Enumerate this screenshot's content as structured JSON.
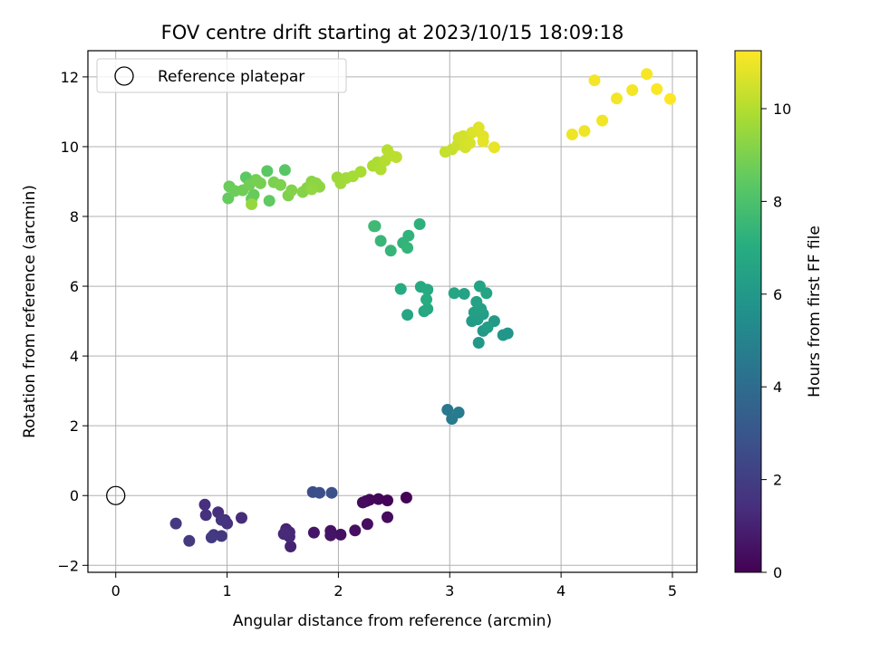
{
  "chart_data": {
    "type": "scatter",
    "title": "FOV centre drift starting at 2023/10/15 18:09:18",
    "xlabel": "Angular distance from reference (arcmin)",
    "ylabel": "Rotation from reference (arcmin)",
    "xlim": [
      -0.25,
      5.22
    ],
    "ylim": [
      -2.2,
      12.75
    ],
    "xticks": [
      0,
      1,
      2,
      3,
      4,
      5
    ],
    "yticks": [
      -2,
      0,
      2,
      4,
      6,
      8,
      10,
      12
    ],
    "grid": true,
    "legend": {
      "placement": "top-left",
      "entries": [
        "Reference platepar"
      ]
    },
    "reference_point": {
      "name": "Reference platepar",
      "x": 0,
      "y": 0
    },
    "colorbar": {
      "label": "Hours from first FF file",
      "colormap": "viridis",
      "range": [
        0,
        11.25
      ],
      "ticks": [
        0,
        2,
        4,
        6,
        8,
        10
      ]
    },
    "points": [
      {
        "x": 2.61,
        "y": -0.06,
        "c": 0.05
      },
      {
        "x": 2.44,
        "y": -0.14,
        "c": 0.1
      },
      {
        "x": 2.36,
        "y": -0.1,
        "c": 0.15
      },
      {
        "x": 2.28,
        "y": -0.12,
        "c": 0.2
      },
      {
        "x": 2.25,
        "y": -0.16,
        "c": 0.25
      },
      {
        "x": 2.22,
        "y": -0.2,
        "c": 0.3
      },
      {
        "x": 2.44,
        "y": -0.62,
        "c": 0.35
      },
      {
        "x": 2.26,
        "y": -0.82,
        "c": 0.4
      },
      {
        "x": 2.15,
        "y": -1.0,
        "c": 0.45
      },
      {
        "x": 2.02,
        "y": -1.12,
        "c": 0.5
      },
      {
        "x": 1.93,
        "y": -1.01,
        "c": 0.55
      },
      {
        "x": 1.93,
        "y": -1.14,
        "c": 0.6
      },
      {
        "x": 1.78,
        "y": -1.06,
        "c": 0.65
      },
      {
        "x": 1.57,
        "y": -1.46,
        "c": 1.0
      },
      {
        "x": 1.53,
        "y": -0.96,
        "c": 1.05
      },
      {
        "x": 1.51,
        "y": -1.1,
        "c": 1.1
      },
      {
        "x": 1.56,
        "y": -1.05,
        "c": 1.15
      },
      {
        "x": 1.56,
        "y": -1.18,
        "c": 1.2
      },
      {
        "x": 1.52,
        "y": -1.08,
        "c": 1.25
      },
      {
        "x": 1.13,
        "y": -0.64,
        "c": 1.3
      },
      {
        "x": 0.98,
        "y": -0.7,
        "c": 1.35
      },
      {
        "x": 0.92,
        "y": -0.48,
        "c": 1.4
      },
      {
        "x": 0.8,
        "y": -0.26,
        "c": 1.45
      },
      {
        "x": 0.81,
        "y": -0.56,
        "c": 1.5
      },
      {
        "x": 1.0,
        "y": -0.8,
        "c": 1.55
      },
      {
        "x": 0.95,
        "y": -0.7,
        "c": 1.6
      },
      {
        "x": 0.88,
        "y": -1.13,
        "c": 1.7
      },
      {
        "x": 0.95,
        "y": -1.16,
        "c": 1.75
      },
      {
        "x": 0.54,
        "y": -0.8,
        "c": 1.8
      },
      {
        "x": 0.66,
        "y": -1.3,
        "c": 1.85
      },
      {
        "x": 0.86,
        "y": -1.2,
        "c": 1.9
      },
      {
        "x": 1.77,
        "y": 0.1,
        "c": 2.6
      },
      {
        "x": 1.83,
        "y": 0.08,
        "c": 2.7
      },
      {
        "x": 1.94,
        "y": 0.08,
        "c": 2.8
      },
      {
        "x": 2.98,
        "y": 2.46,
        "c": 4.5
      },
      {
        "x": 3.02,
        "y": 2.2,
        "c": 4.6
      },
      {
        "x": 3.08,
        "y": 2.38,
        "c": 4.7
      },
      {
        "x": 3.52,
        "y": 4.65,
        "c": 5.9
      },
      {
        "x": 3.48,
        "y": 4.6,
        "c": 5.95
      },
      {
        "x": 3.26,
        "y": 4.38,
        "c": 6.0
      },
      {
        "x": 3.3,
        "y": 4.72,
        "c": 6.05
      },
      {
        "x": 3.4,
        "y": 5.0,
        "c": 6.1
      },
      {
        "x": 3.2,
        "y": 5.0,
        "c": 6.15
      },
      {
        "x": 3.25,
        "y": 5.05,
        "c": 6.2
      },
      {
        "x": 3.34,
        "y": 4.82,
        "c": 6.25
      },
      {
        "x": 3.3,
        "y": 5.2,
        "c": 6.3
      },
      {
        "x": 3.22,
        "y": 5.25,
        "c": 6.35
      },
      {
        "x": 3.28,
        "y": 5.35,
        "c": 6.4
      },
      {
        "x": 3.24,
        "y": 5.55,
        "c": 6.45
      },
      {
        "x": 3.13,
        "y": 5.78,
        "c": 6.5
      },
      {
        "x": 3.27,
        "y": 6.0,
        "c": 6.55
      },
      {
        "x": 3.33,
        "y": 5.8,
        "c": 6.6
      },
      {
        "x": 3.04,
        "y": 5.8,
        "c": 6.65
      },
      {
        "x": 2.62,
        "y": 5.18,
        "c": 6.7
      },
      {
        "x": 2.77,
        "y": 5.28,
        "c": 6.75
      },
      {
        "x": 2.8,
        "y": 5.35,
        "c": 6.8
      },
      {
        "x": 2.74,
        "y": 5.98,
        "c": 6.85
      },
      {
        "x": 2.8,
        "y": 5.9,
        "c": 6.9
      },
      {
        "x": 2.56,
        "y": 5.92,
        "c": 6.95
      },
      {
        "x": 2.79,
        "y": 5.62,
        "c": 7.0
      },
      {
        "x": 2.73,
        "y": 7.78,
        "c": 7.2
      },
      {
        "x": 2.63,
        "y": 7.45,
        "c": 7.3
      },
      {
        "x": 2.58,
        "y": 7.24,
        "c": 7.35
      },
      {
        "x": 2.62,
        "y": 7.1,
        "c": 7.4
      },
      {
        "x": 2.47,
        "y": 7.02,
        "c": 7.45
      },
      {
        "x": 2.38,
        "y": 7.3,
        "c": 7.5
      },
      {
        "x": 2.33,
        "y": 7.72,
        "c": 7.6
      },
      {
        "x": 2.32,
        "y": 7.72,
        "c": 7.65
      },
      {
        "x": 1.52,
        "y": 9.33,
        "c": 8.3
      },
      {
        "x": 1.36,
        "y": 9.3,
        "c": 8.35
      },
      {
        "x": 1.17,
        "y": 9.12,
        "c": 8.4
      },
      {
        "x": 1.38,
        "y": 8.45,
        "c": 8.45
      },
      {
        "x": 1.22,
        "y": 8.5,
        "c": 8.5
      },
      {
        "x": 1.01,
        "y": 8.52,
        "c": 8.55
      },
      {
        "x": 1.24,
        "y": 8.62,
        "c": 8.6
      },
      {
        "x": 1.02,
        "y": 8.86,
        "c": 8.65
      },
      {
        "x": 1.07,
        "y": 8.73,
        "c": 8.7
      },
      {
        "x": 1.14,
        "y": 8.75,
        "c": 8.75
      },
      {
        "x": 1.2,
        "y": 8.9,
        "c": 8.8
      },
      {
        "x": 1.26,
        "y": 9.05,
        "c": 8.85
      },
      {
        "x": 1.3,
        "y": 8.95,
        "c": 8.9
      },
      {
        "x": 1.42,
        "y": 8.98,
        "c": 8.95
      },
      {
        "x": 1.48,
        "y": 8.9,
        "c": 9.0
      },
      {
        "x": 1.55,
        "y": 8.6,
        "c": 9.05
      },
      {
        "x": 1.58,
        "y": 8.75,
        "c": 9.1
      },
      {
        "x": 1.68,
        "y": 8.7,
        "c": 9.15
      },
      {
        "x": 1.72,
        "y": 8.82,
        "c": 9.2
      },
      {
        "x": 1.76,
        "y": 9.0,
        "c": 9.25
      },
      {
        "x": 1.8,
        "y": 8.95,
        "c": 9.3
      },
      {
        "x": 1.83,
        "y": 8.85,
        "c": 9.35
      },
      {
        "x": 1.76,
        "y": 8.78,
        "c": 9.4
      },
      {
        "x": 1.22,
        "y": 8.35,
        "c": 9.45
      },
      {
        "x": 1.99,
        "y": 9.12,
        "c": 9.6
      },
      {
        "x": 2.02,
        "y": 8.95,
        "c": 9.65
      },
      {
        "x": 2.07,
        "y": 9.1,
        "c": 9.7
      },
      {
        "x": 2.13,
        "y": 9.15,
        "c": 9.75
      },
      {
        "x": 2.2,
        "y": 9.28,
        "c": 9.8
      },
      {
        "x": 2.31,
        "y": 9.45,
        "c": 9.85
      },
      {
        "x": 2.35,
        "y": 9.55,
        "c": 9.9
      },
      {
        "x": 2.38,
        "y": 9.35,
        "c": 9.95
      },
      {
        "x": 2.42,
        "y": 9.6,
        "c": 10.0
      },
      {
        "x": 2.44,
        "y": 9.9,
        "c": 10.05
      },
      {
        "x": 2.47,
        "y": 9.75,
        "c": 10.1
      },
      {
        "x": 2.52,
        "y": 9.7,
        "c": 10.15
      },
      {
        "x": 2.96,
        "y": 9.85,
        "c": 10.3
      },
      {
        "x": 3.02,
        "y": 9.92,
        "c": 10.35
      },
      {
        "x": 3.07,
        "y": 10.05,
        "c": 10.4
      },
      {
        "x": 3.08,
        "y": 10.25,
        "c": 10.45
      },
      {
        "x": 3.12,
        "y": 10.3,
        "c": 10.5
      },
      {
        "x": 3.14,
        "y": 9.98,
        "c": 10.55
      },
      {
        "x": 3.18,
        "y": 10.1,
        "c": 10.6
      },
      {
        "x": 3.2,
        "y": 10.4,
        "c": 10.65
      },
      {
        "x": 3.25,
        "y": 10.45,
        "c": 10.7
      },
      {
        "x": 3.26,
        "y": 10.55,
        "c": 10.75
      },
      {
        "x": 3.3,
        "y": 10.3,
        "c": 10.8
      },
      {
        "x": 3.3,
        "y": 10.15,
        "c": 10.85
      },
      {
        "x": 3.4,
        "y": 9.98,
        "c": 10.9
      },
      {
        "x": 4.1,
        "y": 10.35,
        "c": 11.0
      },
      {
        "x": 4.21,
        "y": 10.45,
        "c": 11.02
      },
      {
        "x": 4.37,
        "y": 10.75,
        "c": 11.04
      },
      {
        "x": 4.5,
        "y": 11.38,
        "c": 11.06
      },
      {
        "x": 4.64,
        "y": 11.62,
        "c": 11.08
      },
      {
        "x": 4.3,
        "y": 11.9,
        "c": 11.1
      },
      {
        "x": 4.77,
        "y": 12.08,
        "c": 11.15
      },
      {
        "x": 4.86,
        "y": 11.65,
        "c": 11.2
      },
      {
        "x": 4.98,
        "y": 11.37,
        "c": 11.25
      }
    ]
  }
}
